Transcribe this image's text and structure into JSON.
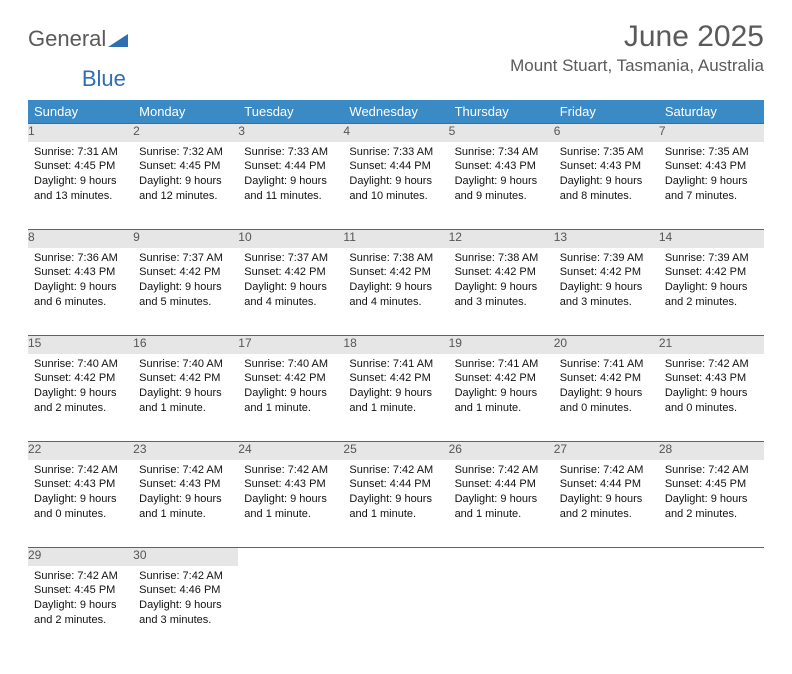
{
  "brand": {
    "part1": "General",
    "part2": "Blue"
  },
  "title": "June 2025",
  "location": "Mount Stuart, Tasmania, Australia",
  "colors": {
    "header_bg": "#3a8ac6",
    "header_text": "#ffffff",
    "daynum_bg": "#e6e6e6",
    "rule": "#2f6fb0",
    "title_color": "#5a5a5a"
  },
  "day_headers": [
    "Sunday",
    "Monday",
    "Tuesday",
    "Wednesday",
    "Thursday",
    "Friday",
    "Saturday"
  ],
  "weeks": [
    [
      {
        "n": "1",
        "sunrise": "Sunrise: 7:31 AM",
        "sunset": "Sunset: 4:45 PM",
        "daylight": "Daylight: 9 hours and 13 minutes."
      },
      {
        "n": "2",
        "sunrise": "Sunrise: 7:32 AM",
        "sunset": "Sunset: 4:45 PM",
        "daylight": "Daylight: 9 hours and 12 minutes."
      },
      {
        "n": "3",
        "sunrise": "Sunrise: 7:33 AM",
        "sunset": "Sunset: 4:44 PM",
        "daylight": "Daylight: 9 hours and 11 minutes."
      },
      {
        "n": "4",
        "sunrise": "Sunrise: 7:33 AM",
        "sunset": "Sunset: 4:44 PM",
        "daylight": "Daylight: 9 hours and 10 minutes."
      },
      {
        "n": "5",
        "sunrise": "Sunrise: 7:34 AM",
        "sunset": "Sunset: 4:43 PM",
        "daylight": "Daylight: 9 hours and 9 minutes."
      },
      {
        "n": "6",
        "sunrise": "Sunrise: 7:35 AM",
        "sunset": "Sunset: 4:43 PM",
        "daylight": "Daylight: 9 hours and 8 minutes."
      },
      {
        "n": "7",
        "sunrise": "Sunrise: 7:35 AM",
        "sunset": "Sunset: 4:43 PM",
        "daylight": "Daylight: 9 hours and 7 minutes."
      }
    ],
    [
      {
        "n": "8",
        "sunrise": "Sunrise: 7:36 AM",
        "sunset": "Sunset: 4:43 PM",
        "daylight": "Daylight: 9 hours and 6 minutes."
      },
      {
        "n": "9",
        "sunrise": "Sunrise: 7:37 AM",
        "sunset": "Sunset: 4:42 PM",
        "daylight": "Daylight: 9 hours and 5 minutes."
      },
      {
        "n": "10",
        "sunrise": "Sunrise: 7:37 AM",
        "sunset": "Sunset: 4:42 PM",
        "daylight": "Daylight: 9 hours and 4 minutes."
      },
      {
        "n": "11",
        "sunrise": "Sunrise: 7:38 AM",
        "sunset": "Sunset: 4:42 PM",
        "daylight": "Daylight: 9 hours and 4 minutes."
      },
      {
        "n": "12",
        "sunrise": "Sunrise: 7:38 AM",
        "sunset": "Sunset: 4:42 PM",
        "daylight": "Daylight: 9 hours and 3 minutes."
      },
      {
        "n": "13",
        "sunrise": "Sunrise: 7:39 AM",
        "sunset": "Sunset: 4:42 PM",
        "daylight": "Daylight: 9 hours and 3 minutes."
      },
      {
        "n": "14",
        "sunrise": "Sunrise: 7:39 AM",
        "sunset": "Sunset: 4:42 PM",
        "daylight": "Daylight: 9 hours and 2 minutes."
      }
    ],
    [
      {
        "n": "15",
        "sunrise": "Sunrise: 7:40 AM",
        "sunset": "Sunset: 4:42 PM",
        "daylight": "Daylight: 9 hours and 2 minutes."
      },
      {
        "n": "16",
        "sunrise": "Sunrise: 7:40 AM",
        "sunset": "Sunset: 4:42 PM",
        "daylight": "Daylight: 9 hours and 1 minute."
      },
      {
        "n": "17",
        "sunrise": "Sunrise: 7:40 AM",
        "sunset": "Sunset: 4:42 PM",
        "daylight": "Daylight: 9 hours and 1 minute."
      },
      {
        "n": "18",
        "sunrise": "Sunrise: 7:41 AM",
        "sunset": "Sunset: 4:42 PM",
        "daylight": "Daylight: 9 hours and 1 minute."
      },
      {
        "n": "19",
        "sunrise": "Sunrise: 7:41 AM",
        "sunset": "Sunset: 4:42 PM",
        "daylight": "Daylight: 9 hours and 1 minute."
      },
      {
        "n": "20",
        "sunrise": "Sunrise: 7:41 AM",
        "sunset": "Sunset: 4:42 PM",
        "daylight": "Daylight: 9 hours and 0 minutes."
      },
      {
        "n": "21",
        "sunrise": "Sunrise: 7:42 AM",
        "sunset": "Sunset: 4:43 PM",
        "daylight": "Daylight: 9 hours and 0 minutes."
      }
    ],
    [
      {
        "n": "22",
        "sunrise": "Sunrise: 7:42 AM",
        "sunset": "Sunset: 4:43 PM",
        "daylight": "Daylight: 9 hours and 0 minutes."
      },
      {
        "n": "23",
        "sunrise": "Sunrise: 7:42 AM",
        "sunset": "Sunset: 4:43 PM",
        "daylight": "Daylight: 9 hours and 1 minute."
      },
      {
        "n": "24",
        "sunrise": "Sunrise: 7:42 AM",
        "sunset": "Sunset: 4:43 PM",
        "daylight": "Daylight: 9 hours and 1 minute."
      },
      {
        "n": "25",
        "sunrise": "Sunrise: 7:42 AM",
        "sunset": "Sunset: 4:44 PM",
        "daylight": "Daylight: 9 hours and 1 minute."
      },
      {
        "n": "26",
        "sunrise": "Sunrise: 7:42 AM",
        "sunset": "Sunset: 4:44 PM",
        "daylight": "Daylight: 9 hours and 1 minute."
      },
      {
        "n": "27",
        "sunrise": "Sunrise: 7:42 AM",
        "sunset": "Sunset: 4:44 PM",
        "daylight": "Daylight: 9 hours and 2 minutes."
      },
      {
        "n": "28",
        "sunrise": "Sunrise: 7:42 AM",
        "sunset": "Sunset: 4:45 PM",
        "daylight": "Daylight: 9 hours and 2 minutes."
      }
    ],
    [
      {
        "n": "29",
        "sunrise": "Sunrise: 7:42 AM",
        "sunset": "Sunset: 4:45 PM",
        "daylight": "Daylight: 9 hours and 2 minutes."
      },
      {
        "n": "30",
        "sunrise": "Sunrise: 7:42 AM",
        "sunset": "Sunset: 4:46 PM",
        "daylight": "Daylight: 9 hours and 3 minutes."
      },
      null,
      null,
      null,
      null,
      null
    ]
  ]
}
